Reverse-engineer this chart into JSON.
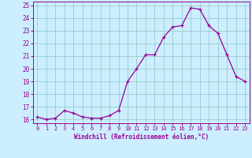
{
  "x": [
    0,
    1,
    2,
    3,
    4,
    5,
    6,
    7,
    8,
    9,
    10,
    11,
    12,
    13,
    14,
    15,
    16,
    17,
    18,
    19,
    20,
    21,
    22,
    23
  ],
  "y": [
    16.2,
    16.0,
    16.1,
    16.7,
    16.5,
    16.2,
    16.1,
    16.1,
    16.3,
    16.7,
    19.0,
    20.0,
    21.1,
    21.1,
    22.5,
    23.3,
    23.4,
    24.8,
    24.7,
    23.4,
    22.8,
    21.1,
    19.4,
    19.0
  ],
  "line_color": "#990099",
  "marker": "+",
  "marker_color": "#990099",
  "bg_color": "#cceeff",
  "grid_color": "#99cccc",
  "xlabel": "Windchill (Refroidissement éolien,°C)",
  "xlabel_color": "#990099",
  "tick_color": "#990099",
  "ylim": [
    15.7,
    25.3
  ],
  "xlim": [
    -0.5,
    23.5
  ],
  "yticks": [
    16,
    17,
    18,
    19,
    20,
    21,
    22,
    23,
    24,
    25
  ],
  "xticks": [
    0,
    1,
    2,
    3,
    4,
    5,
    6,
    7,
    8,
    9,
    10,
    11,
    12,
    13,
    14,
    15,
    16,
    17,
    18,
    19,
    20,
    21,
    22,
    23
  ]
}
